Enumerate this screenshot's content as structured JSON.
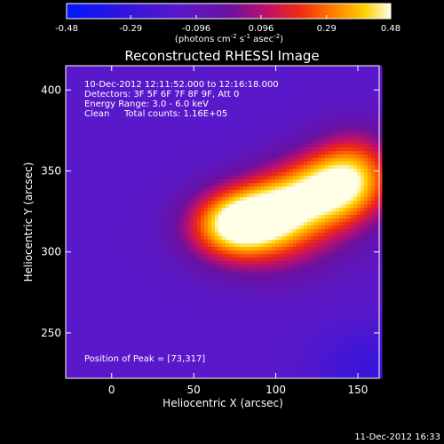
{
  "chart_data": {
    "type": "heatmap",
    "title": "Reconstructed RHESSI Image",
    "xlabel": "Heliocentric X (arcsec)",
    "ylabel": "Heliocentric Y (arcsec)",
    "xlim": [
      -28,
      163
    ],
    "ylim": [
      222,
      415
    ],
    "xticks": [
      0,
      50,
      100,
      150
    ],
    "yticks": [
      250,
      300,
      350,
      400
    ],
    "colorbar": {
      "min": -0.48,
      "max": 0.48,
      "ticks": [
        "-0.48",
        "-0.29",
        "-0.096",
        "0.096",
        "0.29",
        "0.48"
      ],
      "tick_values": [
        -0.48,
        -0.29,
        -0.096,
        0.096,
        0.29,
        0.48
      ],
      "label_prefix": "(photons cm",
      "label_sup1": "-2",
      "label_mid": " s",
      "label_sup2": "-1",
      "label_mid2": " asec",
      "label_sup3": "-2",
      "label_suffix": ")"
    },
    "annotations": {
      "time_range": "10-Dec-2012 12:11:52.000 to 12:16:18.000",
      "detectors": "Detectors: 3F 5F 6F 7F 8F 9F, Att 0",
      "energy": "Energy Range: 3.0 - 6.0 keV",
      "clean_label": "Clean",
      "total_counts": "Total counts: 1.16E+05",
      "peak": "Position of Peak = [73,317]"
    },
    "peak_position": [
      73,
      317
    ],
    "sources": [
      {
        "x": 73,
        "y": 317,
        "amplitude": 0.48,
        "sigma_x": 20,
        "sigma_y": 15
      },
      {
        "x": 100,
        "y": 327,
        "amplitude": 0.42,
        "sigma_x": 22,
        "sigma_y": 16
      },
      {
        "x": 132,
        "y": 340,
        "amplitude": 0.46,
        "sigma_x": 22,
        "sigma_y": 17
      },
      {
        "x": 150,
        "y": 350,
        "amplitude": 0.3,
        "sigma_x": 18,
        "sigma_y": 20
      },
      {
        "x": 100,
        "y": 305,
        "amplitude": 0.2,
        "sigma_x": 32,
        "sigma_y": 18
      }
    ],
    "background": -0.15
  },
  "footer": {
    "timestamp": "11-Dec-2012 16:33"
  }
}
